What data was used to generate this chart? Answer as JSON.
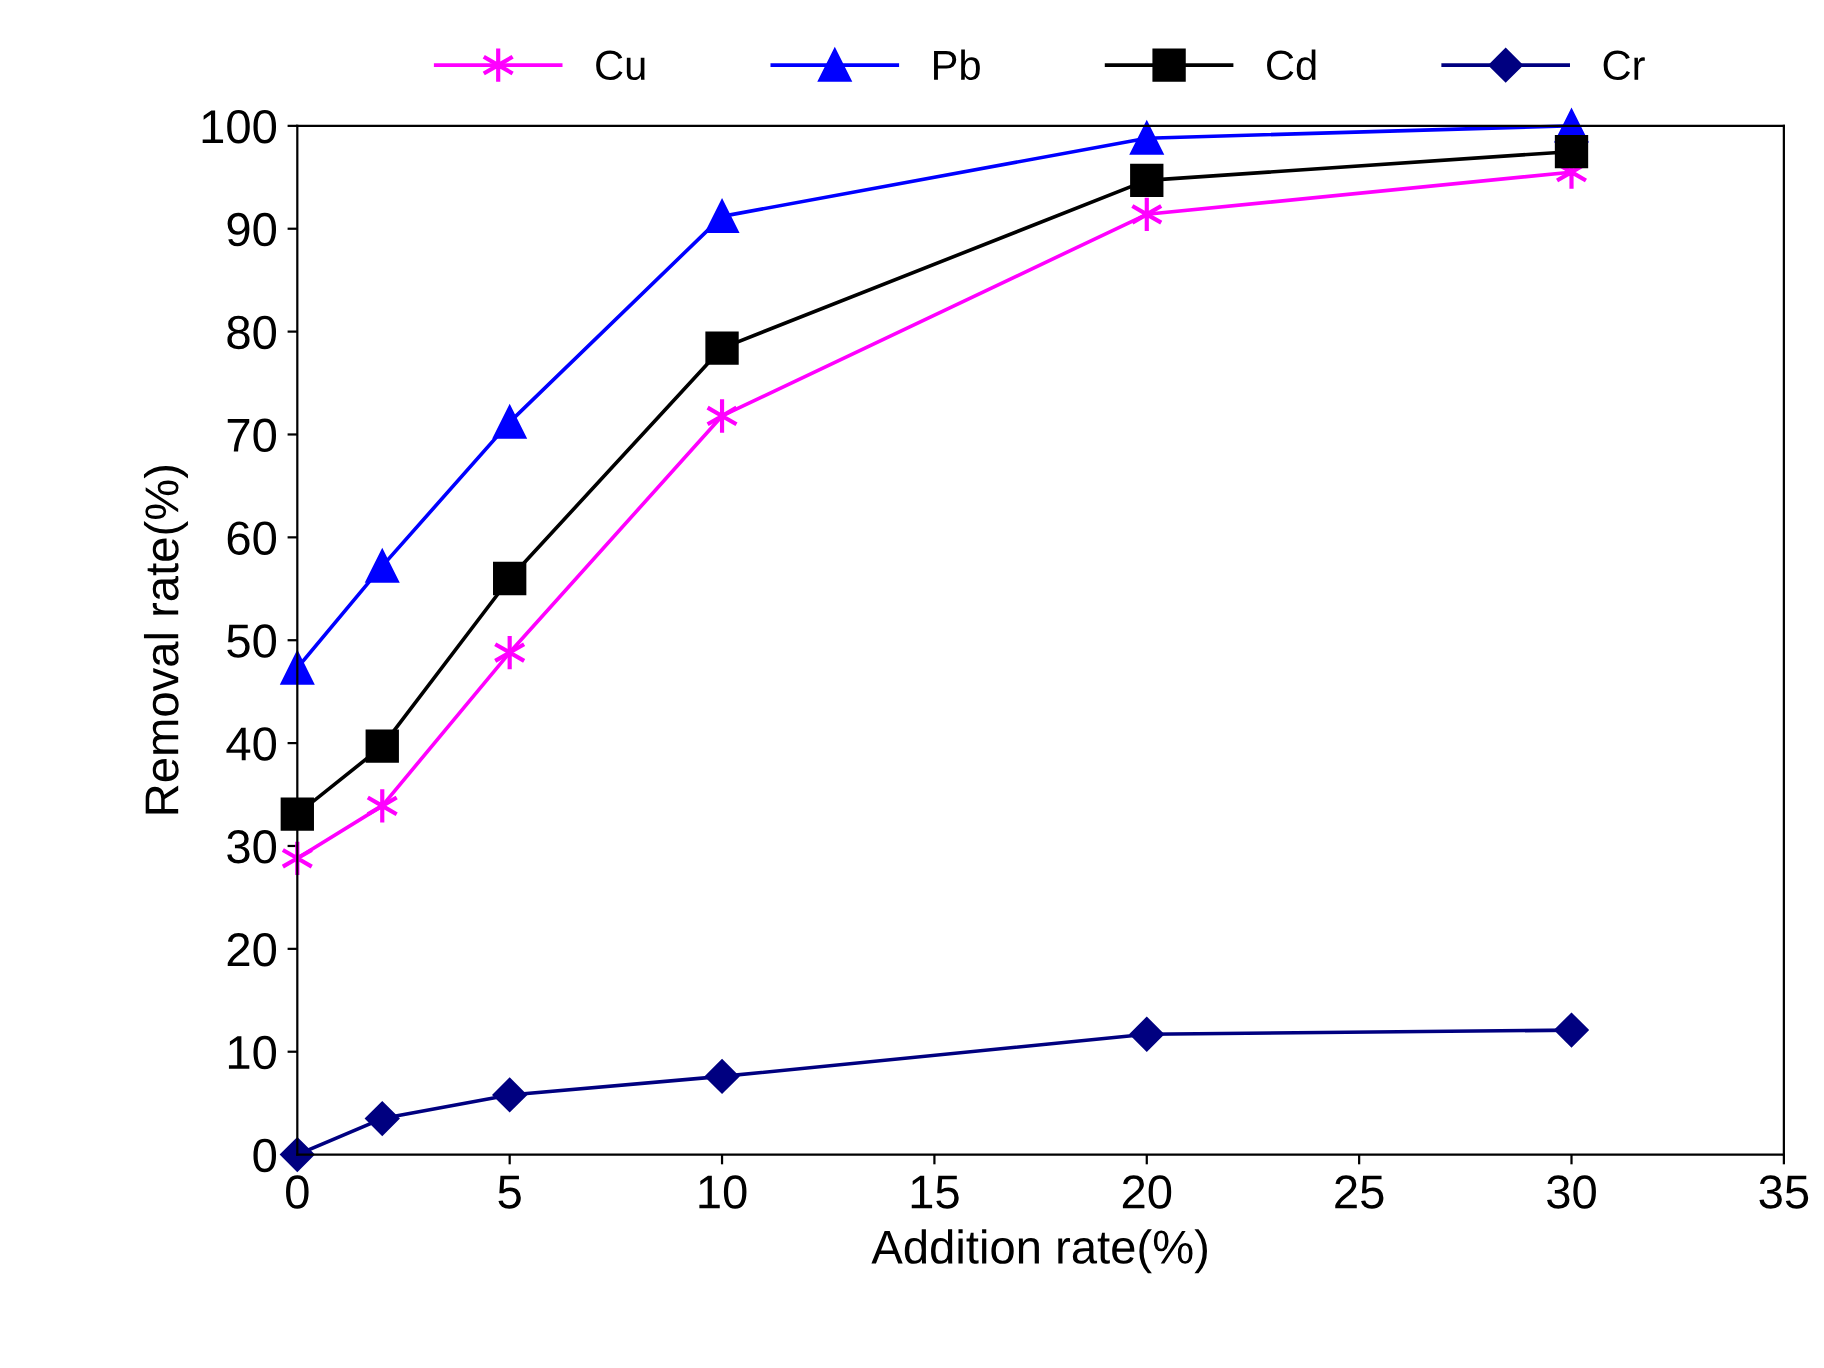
{
  "chart_data": {
    "type": "line",
    "xlabel": "Addition rate(%)",
    "ylabel": "Removal rate(%)",
    "x": [
      0,
      2,
      5,
      10,
      20,
      30
    ],
    "series": [
      {
        "name": "Cu",
        "color": "#ff00ff",
        "marker": "cross",
        "values": [
          28.8,
          33.9,
          48.8,
          71.8,
          91.4,
          95.5
        ]
      },
      {
        "name": "Pb",
        "color": "#0000ff",
        "marker": "triangle",
        "values": [
          47.3,
          57.2,
          71.2,
          91.2,
          98.8,
          100
        ]
      },
      {
        "name": "Cd",
        "color": "#000000",
        "marker": "square",
        "values": [
          33.1,
          39.7,
          56.0,
          78.4,
          94.7,
          97.5
        ]
      },
      {
        "name": "Cr",
        "color": "#000080",
        "marker": "diamond",
        "values": [
          0,
          3.5,
          5.8,
          7.6,
          11.7,
          12.1
        ]
      }
    ],
    "xlim": [
      0,
      35
    ],
    "xticks": [
      0,
      5,
      10,
      15,
      20,
      25,
      30,
      35
    ],
    "ylim": [
      0,
      100
    ],
    "yticks": [
      0,
      10,
      20,
      30,
      40,
      50,
      60,
      70,
      80,
      90,
      100
    ],
    "grid": false,
    "legend": "top",
    "line_style": "solid"
  }
}
